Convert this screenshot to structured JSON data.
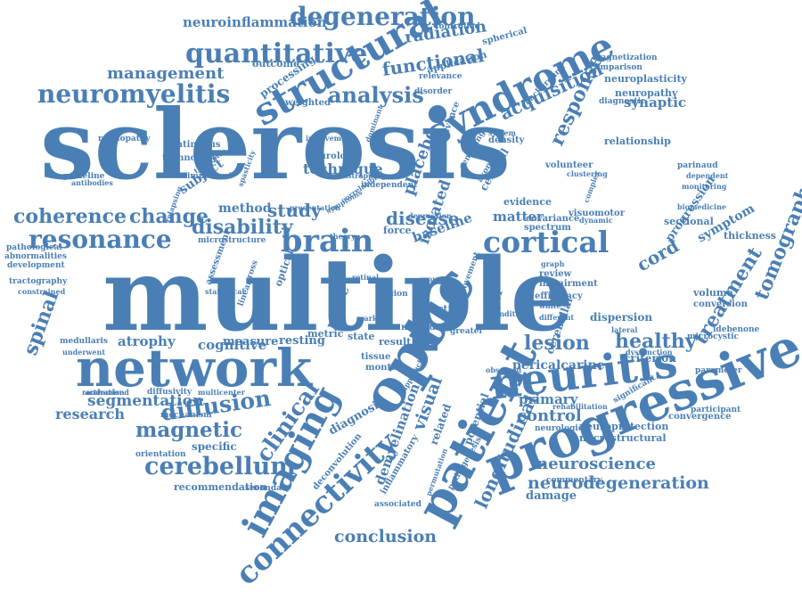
{
  "colors": {
    "word": "#4a7fb5",
    "background": "#ffffff"
  },
  "words": [
    "sclerosis",
    "multiple",
    "network",
    "progressive",
    "patient",
    "optic",
    "imaging",
    "connectivity",
    "neuritis",
    "structural",
    "syndrome",
    "quantitative",
    "degeneration",
    "neuromyelitis",
    "resonance",
    "coherence",
    "change",
    "cortical",
    "brain",
    "cerebellum",
    "magnetic",
    "diffusion",
    "lesion",
    "healthy",
    "treatment",
    "tomography",
    "analysis",
    "functional",
    "acquisition",
    "response",
    "radiation",
    "management",
    "neuroinflammation",
    "conclusion",
    "neurodegeneration",
    "neuroscience",
    "longitudinal",
    "clinical",
    "visual",
    "spinal",
    "disability",
    "study",
    "disease",
    "cord",
    "control",
    "primary",
    "research",
    "segmentation",
    "cognitive",
    "atrophy",
    "synaptic",
    "processing",
    "technique",
    "placebo",
    "isolated",
    "matter",
    "method",
    "subject",
    "damage",
    "recommendation",
    "demyelination",
    "diagnosis",
    "specific",
    "orientation",
    "microstructural",
    "neuroprotection",
    "pericalcarine",
    "criterion",
    "thickness",
    "symptom",
    "progression",
    "sectional",
    "evidence",
    "cervical",
    "baseline",
    "nerve",
    "measure",
    "resting",
    "metric",
    "state",
    "result",
    "tissue",
    "month",
    "related",
    "function",
    "force",
    "layer",
    "potential",
    "cerebellar",
    "dispersion",
    "volume",
    "conversion",
    "participant",
    "rehabilitation",
    "commentary",
    "convergence",
    "neurological",
    "significant",
    "diffusivity",
    "mechanism",
    "secondary",
    "deconvolution",
    "inflammatory",
    "associated",
    "permutation",
    "pathogenesis",
    "dysfunction",
    "microcystic",
    "idebenone",
    "parameter",
    "medullaris",
    "underwent",
    "activation",
    "multicenter",
    "randomised",
    "constrained",
    "tractography",
    "development",
    "abnormalities",
    "pathological",
    "microstructure",
    "assessment",
    "important",
    "guideline",
    "antibodies",
    "retinopathy",
    "continuous",
    "technology",
    "neurology",
    "weighted",
    "outcome",
    "disorder",
    "application",
    "relevance",
    "spherical",
    "controlled",
    "magnetization",
    "comparison",
    "neuroplasticity",
    "neuropathy",
    "background",
    "diagnostic",
    "relationship",
    "volunteer",
    "clustering",
    "parinaud",
    "dependent",
    "monitoring",
    "biomedicine",
    "covariance",
    "visuomotor",
    "spectrum",
    "density",
    "system",
    "advance",
    "efficiency",
    "impairment",
    "review",
    "graph",
    "white",
    "different",
    "condition",
    "observed",
    "greater",
    "approach",
    "movement",
    "nervous",
    "group",
    "optical",
    "linear",
    "cross",
    "statistical",
    "relapsing",
    "therapies",
    "spasticity",
    "involvement",
    "dominant",
    "bootstrapping",
    "correlation",
    "independent",
    "remitting",
    "axonal",
    "lateral",
    "complex",
    "dynamic",
    "depression",
    "presentation",
    "symptoms",
    "retinal",
    "marker",
    "theory",
    "region",
    "edge",
    "study",
    "data"
  ]
}
